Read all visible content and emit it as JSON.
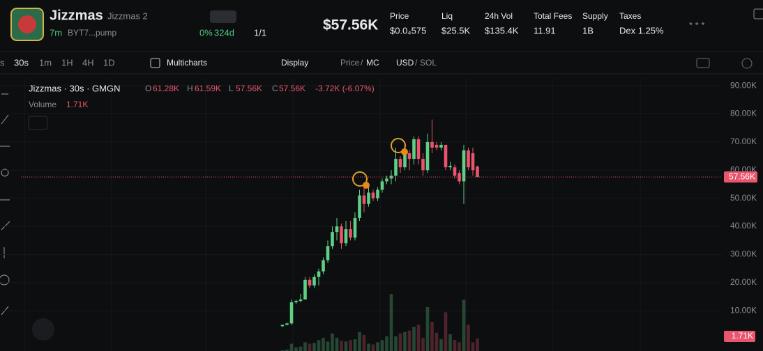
{
  "header": {
    "token_name": "Jizzmas",
    "token_subname": "Jizzmas 2",
    "age": "7m",
    "address": "BYT7...pump",
    "holders_pct": "0%",
    "days": "324d",
    "ratio": "1/1",
    "market_cap": "$57.56K",
    "stats": [
      {
        "label": "Price",
        "value": "$0.0₄575"
      },
      {
        "label": "Liq",
        "value": "$25.5K"
      },
      {
        "label": "24h Vol",
        "value": "$135.4K"
      },
      {
        "label": "Total Fees",
        "value": "11.91"
      },
      {
        "label": "Supply",
        "value": "1B"
      },
      {
        "label": "Taxes",
        "value": "Dex 1.25%"
      }
    ]
  },
  "toolbar": {
    "intervals": [
      "s",
      "30s",
      "1m",
      "1H",
      "4H",
      "1D"
    ],
    "multicharts": "Multicharts",
    "display": "Display",
    "price": "Price",
    "slash": "/",
    "mc": "MC",
    "usd": "USD",
    "sol": "SOL"
  },
  "legend": {
    "title": "Jizzmas · 30s · GMGN",
    "o_key": "O",
    "o": "61.28K",
    "h_key": "H",
    "h": "61.59K",
    "l_key": "L",
    "l": "57.56K",
    "c_key": "C",
    "c": "57.56K",
    "change": "-3.72K (-6.07%)",
    "volume_key": "Volume",
    "volume": "1.71K"
  },
  "chart_data": {
    "type": "candlestick",
    "open": [
      4.5,
      5,
      5.5,
      13,
      13.5,
      14,
      21,
      19,
      22,
      24,
      28,
      33,
      38,
      40,
      34,
      39,
      36,
      43,
      51,
      48,
      52,
      50,
      53,
      56,
      57,
      58,
      64,
      61,
      66,
      64,
      71,
      64,
      60,
      70,
      69,
      68,
      69,
      61,
      61,
      59,
      56,
      67,
      66,
      61.28
    ],
    "high": [
      5,
      5.8,
      14,
      14,
      16,
      22,
      22,
      23,
      25,
      29,
      35,
      40,
      43,
      41,
      42,
      42,
      45,
      53,
      54,
      54,
      53,
      54,
      57,
      58,
      60,
      68,
      65,
      67,
      67,
      72,
      72,
      66,
      73,
      78,
      70,
      70,
      69,
      63,
      62,
      60,
      69,
      68,
      68,
      61.59
    ],
    "low": [
      4.3,
      4.8,
      5,
      12.5,
      13,
      14,
      18,
      18,
      19,
      23,
      27,
      32,
      35,
      32,
      33,
      35,
      35,
      42,
      45,
      47,
      49,
      49,
      52,
      55,
      55,
      56,
      59,
      60,
      60,
      62,
      62,
      58,
      59,
      66,
      67,
      67,
      60,
      60,
      57,
      55,
      48,
      60,
      58,
      57.56
    ],
    "close": [
      5,
      5.5,
      13,
      13.5,
      14,
      21,
      19,
      22,
      24,
      28,
      33,
      38,
      40,
      34,
      39,
      36,
      43,
      51,
      48,
      52,
      50,
      53,
      56,
      57,
      58,
      64,
      61,
      66,
      64,
      71,
      64,
      60,
      70,
      68,
      68,
      69,
      61,
      61.5,
      58,
      56,
      67,
      61,
      60,
      57.56
    ],
    "volume": [
      0.1,
      0.2,
      1.0,
      0.5,
      0.6,
      1.2,
      1.0,
      1.1,
      1.5,
      1.8,
      1.3,
      2.4,
      1.8,
      1.4,
      1.3,
      1.5,
      1.6,
      2.6,
      2.2,
      1.0,
      0.9,
      1.2,
      1.5,
      2.0,
      7.8,
      2.0,
      2.4,
      2.6,
      2.8,
      3.3,
      3.6,
      1.8,
      6.0,
      4.0,
      2.5,
      1.6,
      5.3,
      2.3,
      1.5,
      1.2,
      7.0,
      3.6,
      1.2,
      1.71
    ],
    "up_color": "#5fcf86",
    "down_color": "#e8556d",
    "ylim": [
      -4.3,
      92.5
    ],
    "yticks": [
      {
        "value": 10,
        "label": "10.00K"
      },
      {
        "value": 20,
        "label": "20.00K"
      },
      {
        "value": 30,
        "label": "30.00K"
      },
      {
        "value": 40,
        "label": "40.00K"
      },
      {
        "value": 50,
        "label": "50.00K"
      },
      {
        "value": 60,
        "label": "60.00K"
      },
      {
        "value": 70,
        "label": "70.00K"
      },
      {
        "value": 80,
        "label": "80.00K"
      },
      {
        "value": 90,
        "label": "90.00K"
      }
    ],
    "last_price": 57.56,
    "last_price_label": "57.56K",
    "last_volume_label": "1.71K"
  }
}
